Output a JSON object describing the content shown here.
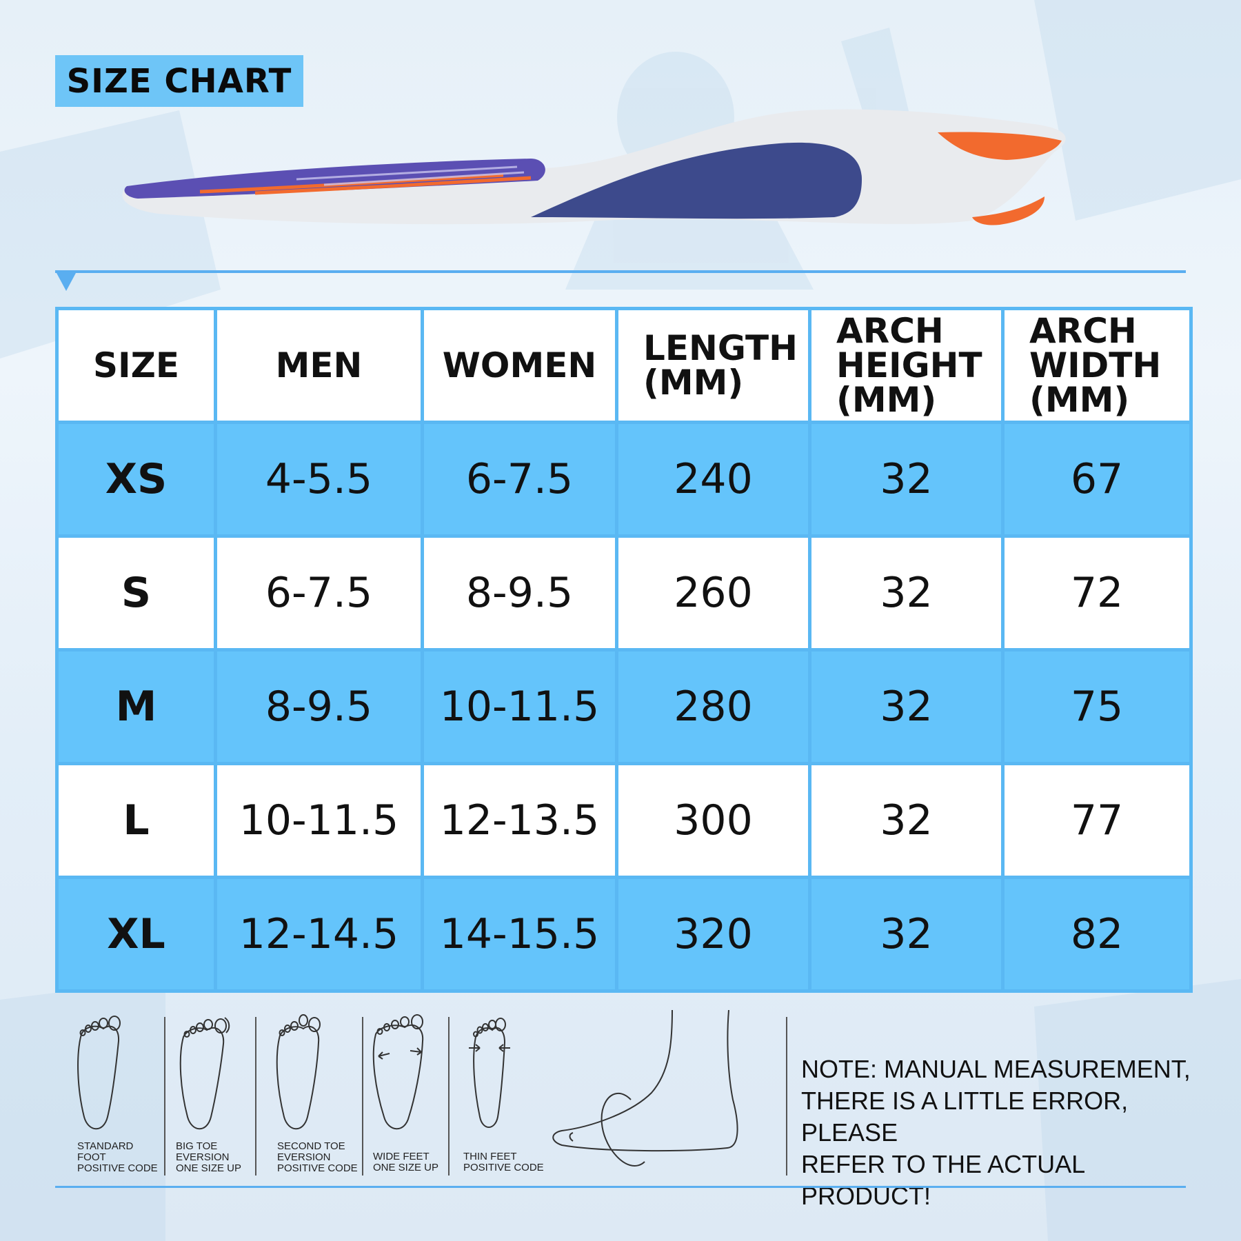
{
  "title": "SIZE CHART",
  "table": {
    "headers": {
      "size": "SIZE",
      "men": "MEN",
      "women": "WOMEN",
      "length": [
        "LENGTH",
        "(MM)"
      ],
      "arch_height": [
        "ARCH",
        "HEIGHT",
        "(MM)"
      ],
      "arch_width": [
        "ARCH",
        "WIDTH",
        "(MM)"
      ]
    },
    "rows": [
      {
        "size": "XS",
        "men": "4-5.5",
        "women": "6-7.5",
        "length": "240",
        "arch_height": "32",
        "arch_width": "67"
      },
      {
        "size": "S",
        "men": "6-7.5",
        "women": "8-9.5",
        "length": "260",
        "arch_height": "32",
        "arch_width": "72"
      },
      {
        "size": "M",
        "men": "8-9.5",
        "women": "10-11.5",
        "length": "280",
        "arch_height": "32",
        "arch_width": "75"
      },
      {
        "size": "L",
        "men": "10-11.5",
        "women": "12-13.5",
        "length": "300",
        "arch_height": "32",
        "arch_width": "77"
      },
      {
        "size": "XL",
        "men": "12-14.5",
        "women": "14-15.5",
        "length": "320",
        "arch_height": "32",
        "arch_width": "82"
      }
    ]
  },
  "feet": [
    {
      "label": [
        "STANDARD",
        "FOOT",
        "POSITIVE CODE"
      ],
      "icon": "standard-foot-icon"
    },
    {
      "label": [
        "BIG TOE",
        "EVERSION",
        "ONE SIZE UP"
      ],
      "icon": "big-toe-eversion-icon"
    },
    {
      "label": [
        "SECOND TOE",
        "EVERSION",
        "POSITIVE CODE"
      ],
      "icon": "second-toe-eversion-icon"
    },
    {
      "label": [
        "WIDE FEET",
        "ONE SIZE UP"
      ],
      "icon": "wide-feet-icon"
    },
    {
      "label": [
        "THIN FEET",
        "POSITIVE CODE"
      ],
      "icon": "thin-feet-icon"
    }
  ],
  "note": [
    "NOTE: MANUAL MEASUREMENT,",
    "THERE IS A LITTLE ERROR, PLEASE",
    "REFER TO THE ACTUAL PRODUCT!"
  ],
  "colors": {
    "accent_blue": "#64c4fb",
    "title_box": "#6ec5f7",
    "line_blue": "#5aaef0",
    "insole_purple": "#5b4fb3",
    "insole_orange": "#f26a2e",
    "insole_navy": "#3d4a8c"
  }
}
